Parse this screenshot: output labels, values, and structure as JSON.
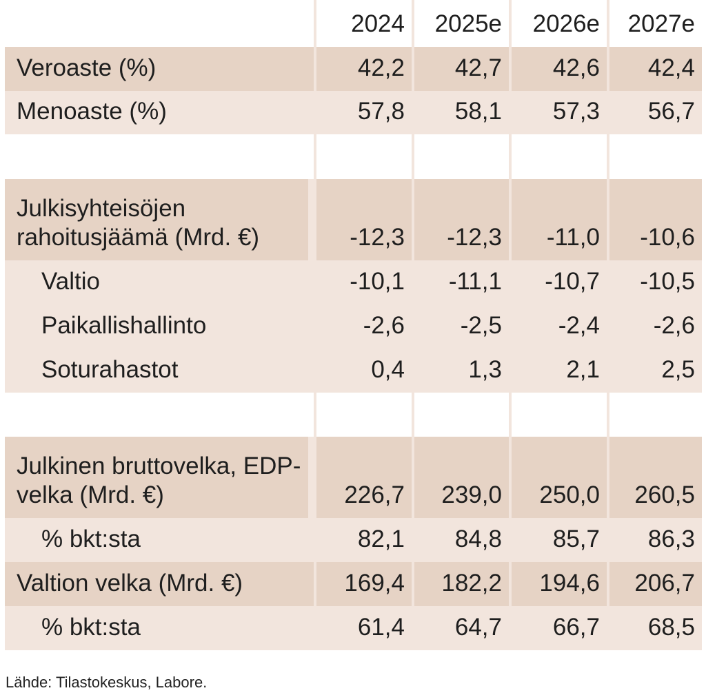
{
  "table": {
    "headers": [
      "",
      "2024",
      "2025e",
      "2026e",
      "2027e"
    ],
    "rows": [
      {
        "label": "Veroaste (%)",
        "values": [
          "42,2",
          "42,7",
          "42,6",
          "42,4"
        ],
        "shade": "dark",
        "indent": false
      },
      {
        "label": "Menoaste (%)",
        "values": [
          "57,8",
          "58,1",
          "57,3",
          "56,7"
        ],
        "shade": "light",
        "indent": false
      },
      {
        "blank": true
      },
      {
        "label": "Julkisyhteisöjen rahoitusjäämä (Mrd. €)",
        "values": [
          "-12,3",
          "-12,3",
          "-11,0",
          "-10,6"
        ],
        "shade": "dark",
        "indent": false
      },
      {
        "label": "Valtio",
        "values": [
          "-10,1",
          "-11,1",
          "-10,7",
          "-10,5"
        ],
        "shade": "light",
        "indent": true
      },
      {
        "label": "Paikallishallinto",
        "values": [
          "-2,6",
          "-2,5",
          "-2,4",
          "-2,6"
        ],
        "shade": "light",
        "indent": true
      },
      {
        "label": "Soturahastot",
        "values": [
          "0,4",
          "1,3",
          "2,1",
          "2,5"
        ],
        "shade": "light",
        "indent": true
      },
      {
        "blank": true
      },
      {
        "label": "Julkinen bruttovelka, EDP-velka (Mrd. €)",
        "values": [
          "226,7",
          "239,0",
          "250,0",
          "260,5"
        ],
        "shade": "dark",
        "indent": false
      },
      {
        "label": "% bkt:sta",
        "values": [
          "82,1",
          "84,8",
          "85,7",
          "86,3"
        ],
        "shade": "light",
        "indent": true
      },
      {
        "label": "Valtion velka (Mrd. €)",
        "values": [
          "169,4",
          "182,2",
          "194,6",
          "206,7"
        ],
        "shade": "dark",
        "indent": false
      },
      {
        "label": "% bkt:sta",
        "values": [
          "61,4",
          "64,7",
          "66,7",
          "68,5"
        ],
        "shade": "light",
        "indent": true
      }
    ]
  },
  "source": "Lähde: Tilastokeskus, Labore.",
  "colors": {
    "dark": "#e6d3c5",
    "light": "#f2e5dd"
  }
}
